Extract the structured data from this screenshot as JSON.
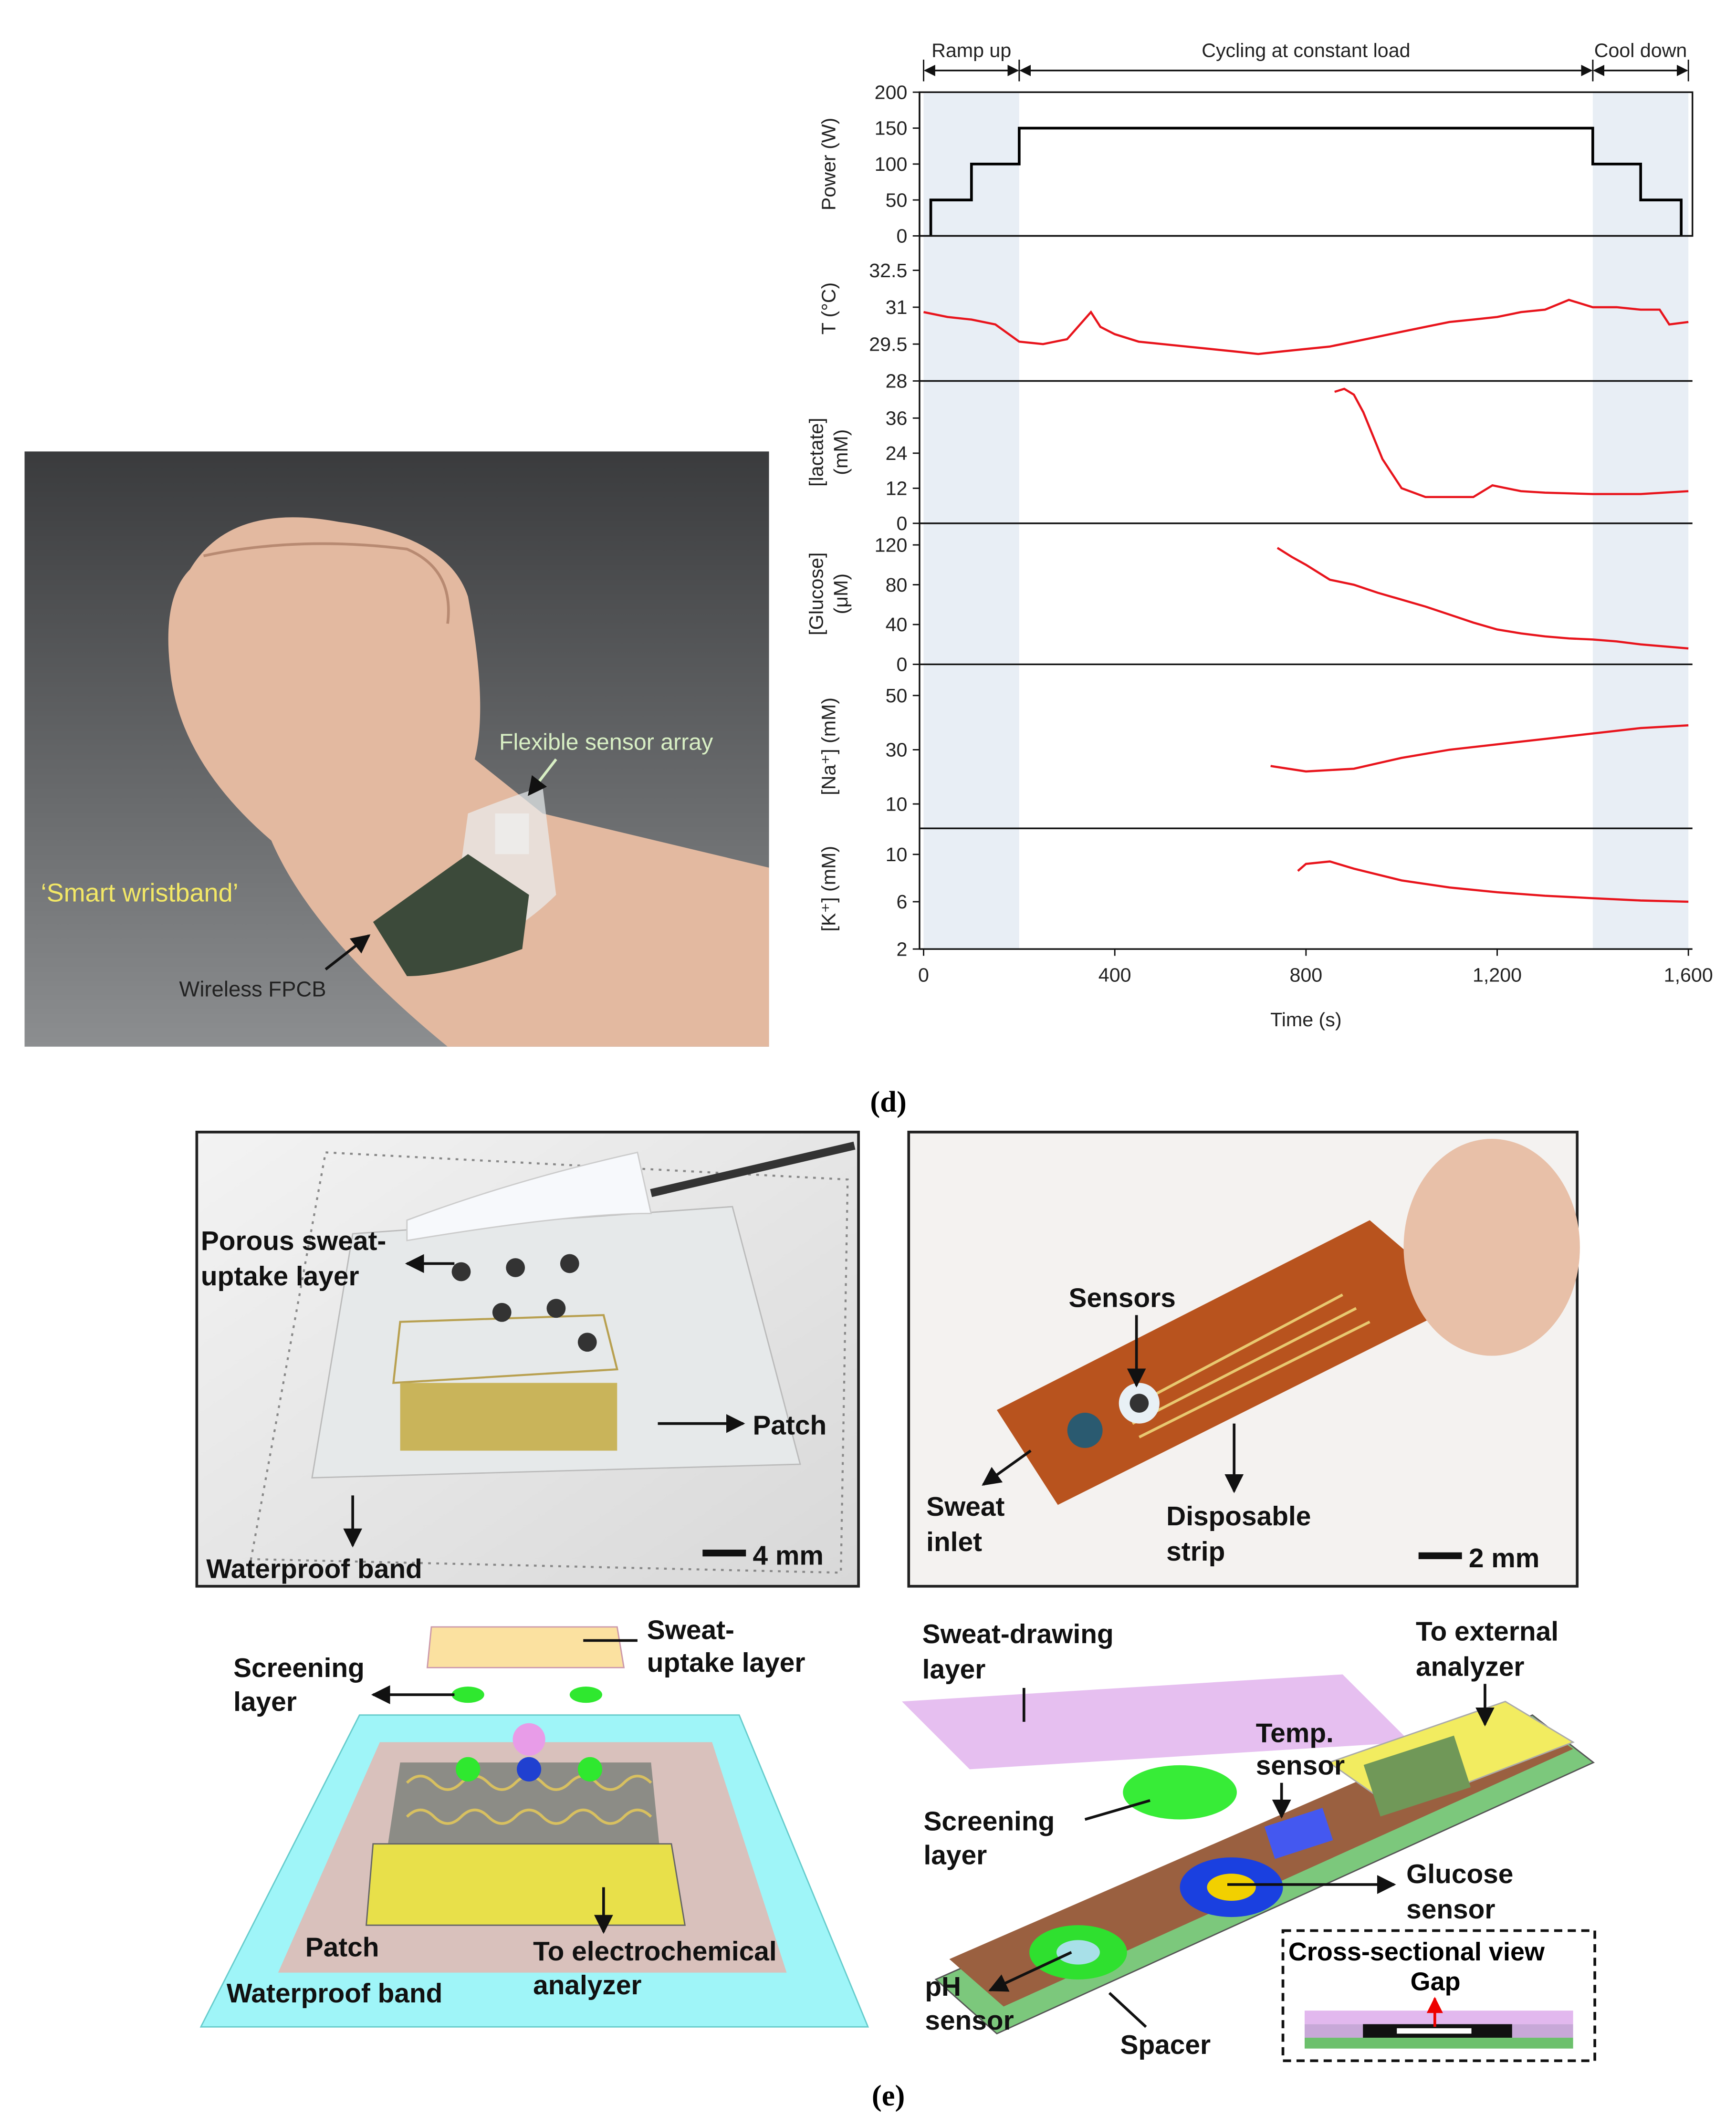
{
  "panel_a": {
    "wristband": "‘Smart wristband’",
    "sensor_array": "Flexible sensor array",
    "fpcb": "Wireless FPCB"
  },
  "chart_data": [
    {
      "type": "line",
      "y_label": [
        "Power (W)"
      ],
      "color": "#000000",
      "xlim": [
        0,
        1600
      ],
      "ylim": [
        0,
        200
      ],
      "yticks": [
        0,
        50,
        100,
        150,
        200
      ],
      "annotations": [
        {
          "text": "Ramp up",
          "range": [
            0,
            200
          ],
          "shaded": true
        },
        {
          "text": "Cycling at constant load",
          "range": [
            200,
            1400
          ],
          "shaded": false
        },
        {
          "text": "Cool down",
          "range": [
            1400,
            1600
          ],
          "shaded": true
        }
      ],
      "x": [
        15,
        15,
        100,
        100,
        200,
        200,
        1400,
        1400,
        1500,
        1500,
        1585,
        1585
      ],
      "values": [
        0,
        50,
        50,
        100,
        100,
        150,
        150,
        100,
        100,
        50,
        50,
        0
      ]
    },
    {
      "type": "line",
      "y_label": [
        "T (°C)"
      ],
      "color": "#e8141c",
      "xlim": [
        0,
        1600
      ],
      "ylim": [
        28,
        33.9
      ],
      "yticks": [
        28,
        29.5,
        31,
        32.5
      ],
      "x": [
        0,
        50,
        100,
        150,
        200,
        250,
        300,
        350,
        370,
        400,
        450,
        500,
        550,
        600,
        650,
        700,
        750,
        800,
        850,
        900,
        950,
        1000,
        1050,
        1100,
        1150,
        1200,
        1250,
        1300,
        1350,
        1400,
        1450,
        1500,
        1540,
        1560,
        1600
      ],
      "values": [
        30.8,
        30.6,
        30.5,
        30.3,
        29.6,
        29.5,
        29.7,
        30.8,
        30.2,
        29.9,
        29.6,
        29.5,
        29.4,
        29.3,
        29.2,
        29.1,
        29.2,
        29.3,
        29.4,
        29.6,
        29.8,
        30.0,
        30.2,
        30.4,
        30.5,
        30.6,
        30.8,
        30.9,
        31.3,
        31.0,
        31.0,
        30.9,
        30.9,
        30.3,
        30.4
      ]
    },
    {
      "type": "line",
      "y_label": [
        "[lactate]",
        "(mM)"
      ],
      "color": "#e8141c",
      "xlim": [
        0,
        1600
      ],
      "ylim": [
        0,
        48.7
      ],
      "yticks": [
        0,
        12,
        24,
        36
      ],
      "x": [
        860,
        880,
        900,
        920,
        960,
        1000,
        1050,
        1100,
        1150,
        1190,
        1250,
        1300,
        1400,
        1500,
        1600
      ],
      "values": [
        45,
        46,
        44,
        38,
        22,
        12,
        9,
        9,
        9,
        13,
        11,
        10.5,
        10,
        10,
        11
      ]
    },
    {
      "type": "line",
      "y_label": [
        "[Glucose]",
        "(μM)"
      ],
      "color": "#e8141c",
      "xlim": [
        0,
        1600
      ],
      "ylim": [
        0,
        141.7
      ],
      "yticks": [
        0,
        40,
        80,
        120
      ],
      "x": [
        740,
        770,
        800,
        850,
        900,
        950,
        1000,
        1050,
        1100,
        1150,
        1200,
        1250,
        1300,
        1350,
        1400,
        1450,
        1500,
        1550,
        1600
      ],
      "values": [
        117,
        108,
        100,
        85,
        80,
        72,
        65,
        58,
        50,
        42,
        35,
        31,
        28,
        26,
        25,
        23,
        20,
        18,
        16
      ]
    },
    {
      "type": "line",
      "y_label": [
        "[Na⁺] (mM)"
      ],
      "color": "#e8141c",
      "xlim": [
        0,
        1600
      ],
      "ylim": [
        1,
        61.5
      ],
      "yticks": [
        10,
        30,
        50
      ],
      "x": [
        726,
        800,
        900,
        1000,
        1100,
        1200,
        1300,
        1400,
        1500,
        1600
      ],
      "values": [
        24,
        22,
        23,
        27,
        30,
        32,
        34,
        36,
        38,
        39
      ]
    },
    {
      "type": "line",
      "y_label": [
        "[K⁺] (mM)"
      ],
      "color": "#e8141c",
      "xlim": [
        0,
        1600
      ],
      "ylim": [
        2,
        12.2
      ],
      "yticks": [
        2,
        6,
        10
      ],
      "x_label": "Time (s)",
      "xticks": [
        0,
        400,
        800,
        {
          "value": 1200,
          "label": "1,200"
        },
        {
          "value": 1600,
          "label": "1,600"
        }
      ],
      "x": [
        783,
        800,
        850,
        900,
        1000,
        1100,
        1200,
        1300,
        1400,
        1500,
        1600
      ],
      "values": [
        8.6,
        9.2,
        9.4,
        8.8,
        7.8,
        7.2,
        6.8,
        6.5,
        6.3,
        6.1,
        6.0
      ]
    }
  ],
  "caption_d": "(d)",
  "panel_e": {
    "patch_photo": {
      "uptake_layer": [
        "Porous sweat-",
        "uptake layer"
      ],
      "patch": "Patch",
      "band": "Waterproof band",
      "scale": "4 mm"
    },
    "strip_photo": {
      "sensors": "Sensors",
      "inlet": [
        "Sweat",
        "inlet"
      ],
      "strip": [
        "Disposable",
        "strip"
      ],
      "scale": "2 mm"
    },
    "patch_diagram": {
      "uptake_layer": [
        "Sweat-",
        "uptake layer"
      ],
      "screening": [
        "Screening",
        "layer"
      ],
      "patch": "Patch",
      "analyzer": [
        "To electrochemical",
        "analyzer"
      ],
      "band": "Waterproof band"
    },
    "strip_diagram": {
      "drawing_layer": [
        "Sweat-drawing",
        "layer"
      ],
      "analyzer": [
        "To external",
        "analyzer"
      ],
      "temp": [
        "Temp.",
        "sensor"
      ],
      "screening": [
        "Screening",
        "layer"
      ],
      "glucose": [
        "Glucose",
        "sensor"
      ],
      "ph": [
        "pH",
        "sensor"
      ],
      "spacer": "Spacer",
      "cross_section": "Cross-sectional view",
      "gap": "Gap"
    },
    "caption": "(e)"
  }
}
